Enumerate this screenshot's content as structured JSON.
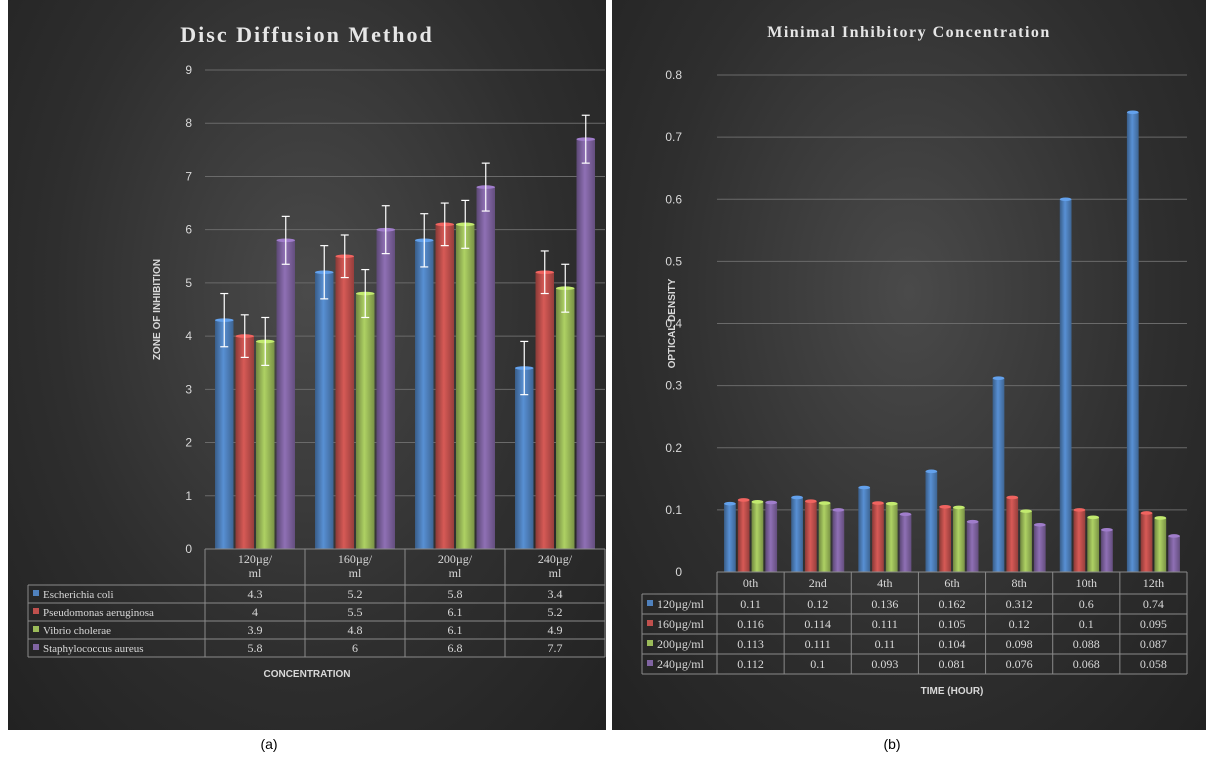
{
  "captions": {
    "left": "(a)",
    "right": "(b)"
  },
  "colors": {
    "blue": "#4f81bd",
    "red": "#c0504d",
    "green": "#9bbb59",
    "purple": "#8064a2",
    "text": "#d9d9d9",
    "title": "#e6e6e6"
  },
  "chart_data": [
    {
      "type": "bar",
      "title": "Disc Diffusion Method",
      "xlabel": "CONCENTRATION",
      "ylabel": "ZONE OF INHIBITION",
      "ylim": [
        0,
        9
      ],
      "yticks": [
        "0",
        "1",
        "2",
        "3",
        "4",
        "5",
        "6",
        "7",
        "8",
        "9"
      ],
      "categories": [
        "120µg/ ml",
        "160µg/ ml",
        "200µg/ ml",
        "240µg/ ml"
      ],
      "error_bars": true,
      "series": [
        {
          "name": "Escherichia coli",
          "values": [
            "4.3",
            "5.2",
            "5.8",
            "3.4"
          ],
          "errors": [
            0.5,
            0.5,
            0.5,
            0.5
          ]
        },
        {
          "name": "Pseudomonas aeruginosa",
          "values": [
            "4",
            "5.5",
            "6.1",
            "5.2"
          ],
          "errors": [
            0.4,
            0.4,
            0.4,
            0.4
          ]
        },
        {
          "name": "Vibrio cholerae",
          "values": [
            "3.9",
            "4.8",
            "6.1",
            "4.9"
          ],
          "errors": [
            0.45,
            0.45,
            0.45,
            0.45
          ]
        },
        {
          "name": "Staphylococcus aureus",
          "values": [
            "5.8",
            "6",
            "6.8",
            "7.7"
          ],
          "errors": [
            0.45,
            0.45,
            0.45,
            0.45
          ]
        }
      ]
    },
    {
      "type": "bar",
      "title": "Minimal Inhibitory Concentration",
      "xlabel": "TIME (HOUR)",
      "ylabel": "OPTICAL DENSITY",
      "ylim": [
        0,
        0.8
      ],
      "yticks": [
        "0",
        "0.1",
        "0.2",
        "0.3",
        "0.4",
        "0.5",
        "0.6",
        "0.7",
        "0.8"
      ],
      "categories": [
        "0th",
        "2nd",
        "4th",
        "6th",
        "8th",
        "10th",
        "12th"
      ],
      "error_bars": false,
      "series": [
        {
          "name": "120µg/ml",
          "values": [
            "0.11",
            "0.12",
            "0.136",
            "0.162",
            "0.312",
            "0.6",
            "0.74"
          ]
        },
        {
          "name": "160µg/ml",
          "values": [
            "0.116",
            "0.114",
            "0.111",
            "0.105",
            "0.12",
            "0.1",
            "0.095"
          ]
        },
        {
          "name": "200µg/ml",
          "values": [
            "0.113",
            "0.111",
            "0.11",
            "0.104",
            "0.098",
            "0.088",
            "0.087"
          ]
        },
        {
          "name": "240µg/ml",
          "values": [
            "0.112",
            "0.1",
            "0.093",
            "0.081",
            "0.076",
            "0.068",
            "0.058"
          ]
        }
      ]
    }
  ]
}
